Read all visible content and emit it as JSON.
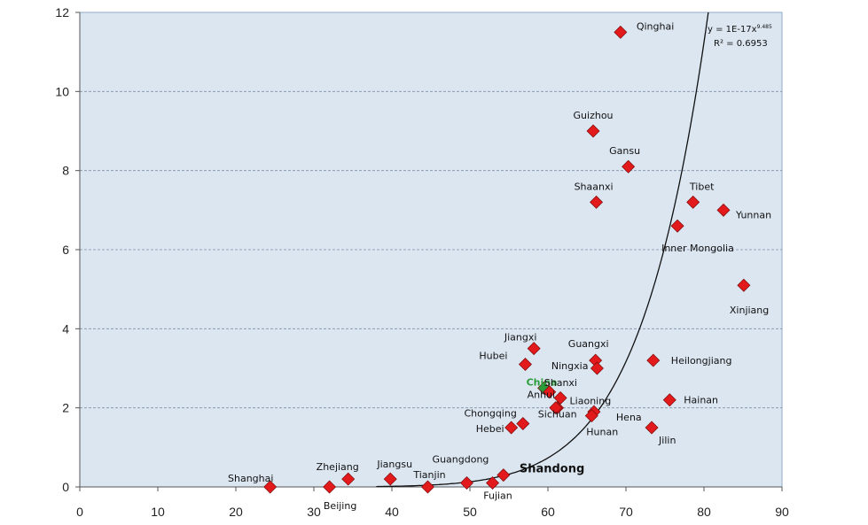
{
  "chart_data": {
    "type": "scatter",
    "xlim": [
      0,
      90
    ],
    "ylim": [
      0,
      12
    ],
    "x_ticks": [
      0,
      10,
      20,
      30,
      40,
      50,
      60,
      70,
      80,
      90
    ],
    "y_ticks": [
      0,
      2,
      4,
      6,
      8,
      10,
      12
    ],
    "grid": "horizontal dashed",
    "colors": {
      "plot_bg": "#dce6f1",
      "marker": "#e31a1c",
      "highlight_marker": "#2a9d3a",
      "trendline": "#111111"
    },
    "trendline": {
      "type": "power",
      "coefficient": 1e-17,
      "exponent": 9.485,
      "equation_label": "y = 1E-17x",
      "exponent_label": "9.485",
      "r2_label": "R² = 0.6953"
    },
    "points": [
      {
        "label": "Qinghai",
        "x": 69.3,
        "y": 11.5
      },
      {
        "label": "Guizhou",
        "x": 65.8,
        "y": 9.0
      },
      {
        "label": "Gansu",
        "x": 70.3,
        "y": 8.1
      },
      {
        "label": "Shaanxi",
        "x": 66.2,
        "y": 7.2
      },
      {
        "label": "Tibet",
        "x": 78.6,
        "y": 7.2
      },
      {
        "label": "Yunnan",
        "x": 82.5,
        "y": 7.0
      },
      {
        "label": "Inner Mongolia",
        "x": 76.6,
        "y": 6.6
      },
      {
        "label": "Xinjiang",
        "x": 85.1,
        "y": 5.1
      },
      {
        "label": "Jiangxi",
        "x": 58.2,
        "y": 3.5
      },
      {
        "label": "Hubei",
        "x": 57.1,
        "y": 3.1
      },
      {
        "label": "Guangxi",
        "x": 66.1,
        "y": 3.2
      },
      {
        "label": "Ningxia",
        "x": 66.3,
        "y": 3.0
      },
      {
        "label": "Heilongjiang",
        "x": 73.5,
        "y": 3.2
      },
      {
        "label": "China",
        "x": 59.5,
        "y": 2.5,
        "highlight": true
      },
      {
        "label": "Shanxi",
        "x": 60.2,
        "y": 2.4
      },
      {
        "label": "Anhui",
        "x": 61.6,
        "y": 2.25
      },
      {
        "label": "Liaoning",
        "x": 61.2,
        "y": 2.0
      },
      {
        "label": "Hena",
        "x": 65.9,
        "y": 1.9
      },
      {
        "label": "Hunan",
        "x": 65.6,
        "y": 1.8
      },
      {
        "label": "Hainan",
        "x": 75.6,
        "y": 2.2
      },
      {
        "label": "Chongqing",
        "x": 56.8,
        "y": 1.6
      },
      {
        "label": "Hebei",
        "x": 55.3,
        "y": 1.5
      },
      {
        "label": "Sichuan",
        "x": 61.0,
        "y": 2.0
      },
      {
        "label": "Jilin",
        "x": 73.3,
        "y": 1.5
      },
      {
        "label": "Shanghai",
        "x": 24.4,
        "y": 0.0
      },
      {
        "label": "Beijing",
        "x": 32.0,
        "y": 0.0
      },
      {
        "label": "Zhejiang",
        "x": 34.4,
        "y": 0.2
      },
      {
        "label": "Jiangsu",
        "x": 39.8,
        "y": 0.2
      },
      {
        "label": "Tianjin",
        "x": 44.6,
        "y": 0.0
      },
      {
        "label": "Guangdong",
        "x": 49.6,
        "y": 0.1
      },
      {
        "label": "Fujian",
        "x": 52.9,
        "y": 0.1
      },
      {
        "label": "Shandong",
        "x": 54.3,
        "y": 0.3
      }
    ]
  }
}
